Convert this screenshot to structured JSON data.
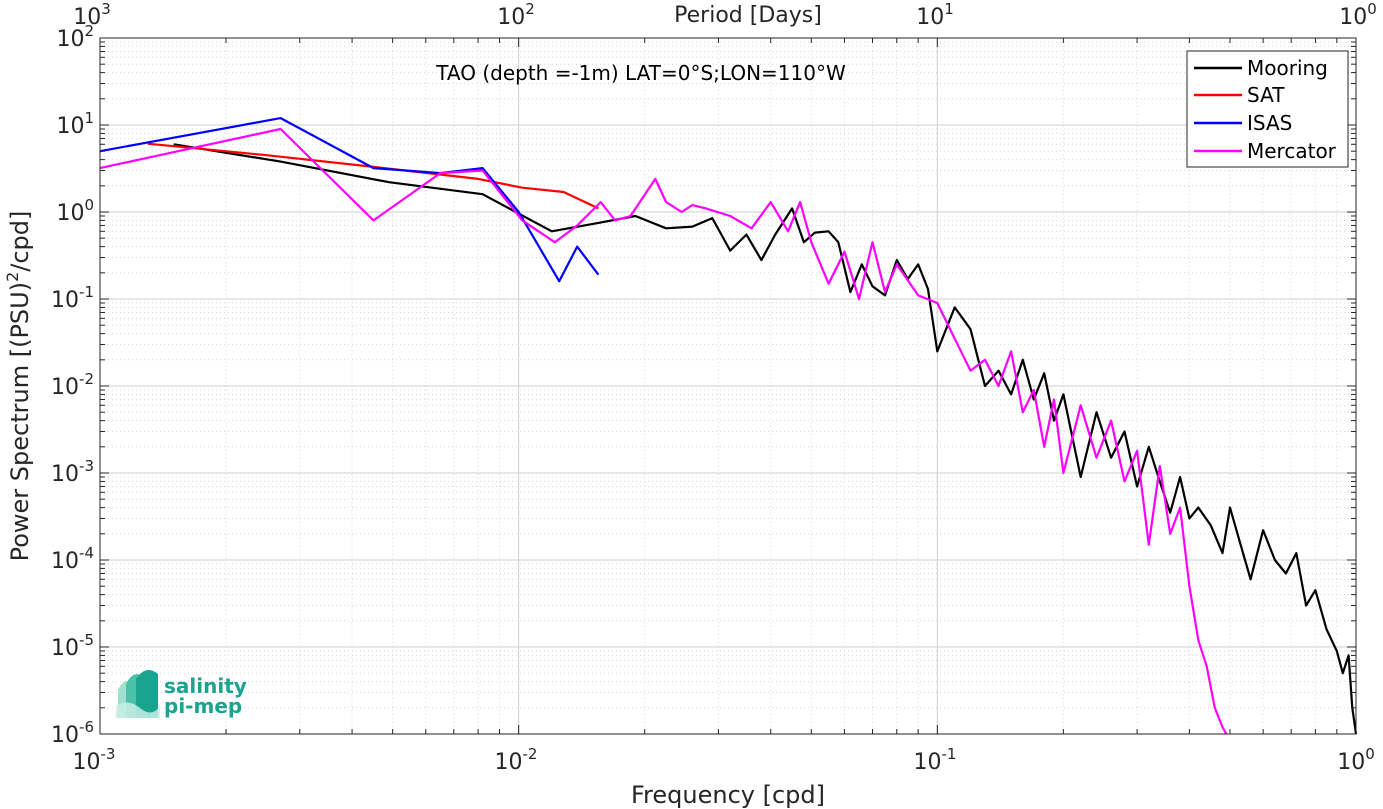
{
  "chart_data": {
    "type": "line",
    "title": "TAO (depth =-1m) LAT=0°S;LON=110°W",
    "xlabel": "Frequency [cpd]",
    "top_xlabel": "Period [Days]",
    "ylabel_main": "Power Spectrum [(PSU)",
    "ylabel_exp": "2",
    "ylabel_tail": "/cpd]",
    "x_scale": "log",
    "y_scale": "log",
    "xlim": [
      0.001,
      1
    ],
    "ylim": [
      1e-06,
      100
    ],
    "grid": true,
    "legend_position": "top-right",
    "x_ticks": [
      {
        "base": "10",
        "exp": "-3"
      },
      {
        "base": "10",
        "exp": "-2"
      },
      {
        "base": "10",
        "exp": "-1"
      },
      {
        "base": "10",
        "exp": "0"
      }
    ],
    "top_ticks": [
      {
        "base": "10",
        "exp": "3"
      },
      {
        "base": "10",
        "exp": "2"
      },
      {
        "base": "10",
        "exp": "1"
      },
      {
        "base": "10",
        "exp": "0"
      }
    ],
    "y_ticks": [
      {
        "base": "10",
        "exp": "2"
      },
      {
        "base": "10",
        "exp": "1"
      },
      {
        "base": "10",
        "exp": "0"
      },
      {
        "base": "10",
        "exp": "-1"
      },
      {
        "base": "10",
        "exp": "-2"
      },
      {
        "base": "10",
        "exp": "-3"
      },
      {
        "base": "10",
        "exp": "-4"
      },
      {
        "base": "10",
        "exp": "-5"
      },
      {
        "base": "10",
        "exp": "-6"
      }
    ],
    "series": [
      {
        "name": "Mooring",
        "color": "#000000",
        "x": [
          0.0015,
          0.0027,
          0.0049,
          0.0082,
          0.012,
          0.0155,
          0.019,
          0.0225,
          0.026,
          0.029,
          0.032,
          0.035,
          0.038,
          0.041,
          0.045,
          0.048,
          0.051,
          0.055,
          0.058,
          0.062,
          0.066,
          0.07,
          0.075,
          0.08,
          0.085,
          0.09,
          0.095,
          0.1,
          0.11,
          0.12,
          0.13,
          0.14,
          0.15,
          0.16,
          0.17,
          0.18,
          0.19,
          0.2,
          0.22,
          0.24,
          0.26,
          0.28,
          0.3,
          0.32,
          0.34,
          0.36,
          0.38,
          0.4,
          0.42,
          0.45,
          0.48,
          0.5,
          0.53,
          0.56,
          0.6,
          0.64,
          0.68,
          0.72,
          0.76,
          0.8,
          0.85,
          0.9,
          0.93,
          0.96,
          0.98,
          1.0
        ],
        "y": [
          6.0,
          3.8,
          2.2,
          1.6,
          0.6,
          0.75,
          0.9,
          0.65,
          0.68,
          0.85,
          0.36,
          0.55,
          0.28,
          0.55,
          1.1,
          0.45,
          0.58,
          0.6,
          0.45,
          0.12,
          0.25,
          0.14,
          0.11,
          0.28,
          0.17,
          0.25,
          0.13,
          0.025,
          0.08,
          0.045,
          0.01,
          0.015,
          0.008,
          0.02,
          0.007,
          0.014,
          0.004,
          0.008,
          0.0009,
          0.005,
          0.0015,
          0.003,
          0.0007,
          0.002,
          0.0008,
          0.00035,
          0.0009,
          0.0003,
          0.0004,
          0.00025,
          0.00012,
          0.0004,
          0.00015,
          6e-05,
          0.00022,
          0.0001,
          7e-05,
          0.00012,
          3e-05,
          4.5e-05,
          1.6e-05,
          9e-06,
          5e-06,
          8e-06,
          2e-06,
          1e-06
        ]
      },
      {
        "name": "SAT",
        "color": "#ff0000",
        "x": [
          0.0013,
          0.0025,
          0.0045,
          0.008,
          0.0102,
          0.0128,
          0.0155
        ],
        "y": [
          6.1,
          4.5,
          3.3,
          2.4,
          1.9,
          1.7,
          1.1
        ]
      },
      {
        "name": "ISAS",
        "color": "#0000ff",
        "x": [
          0.001,
          0.0027,
          0.0045,
          0.0065,
          0.0082,
          0.01,
          0.0125,
          0.0138,
          0.0155
        ],
        "y": [
          5.0,
          12.0,
          3.2,
          2.8,
          3.2,
          1.0,
          0.16,
          0.4,
          0.19
        ]
      },
      {
        "name": "Mercator",
        "color": "#ff00ff",
        "x": [
          0.001,
          0.0027,
          0.0045,
          0.0065,
          0.0082,
          0.0102,
          0.0122,
          0.0138,
          0.0157,
          0.017,
          0.0185,
          0.0212,
          0.0225,
          0.0245,
          0.026,
          0.028,
          0.032,
          0.036,
          0.04,
          0.044,
          0.047,
          0.05,
          0.055,
          0.06,
          0.065,
          0.07,
          0.075,
          0.08,
          0.09,
          0.1,
          0.11,
          0.12,
          0.13,
          0.14,
          0.15,
          0.16,
          0.17,
          0.18,
          0.19,
          0.2,
          0.22,
          0.24,
          0.26,
          0.28,
          0.3,
          0.32,
          0.34,
          0.36,
          0.38,
          0.4,
          0.42,
          0.44,
          0.46,
          0.48,
          0.49
        ],
        "y": [
          3.2,
          9.0,
          0.8,
          2.8,
          3.0,
          0.8,
          0.45,
          0.7,
          1.3,
          0.8,
          0.9,
          2.4,
          1.3,
          1.0,
          1.2,
          1.1,
          0.9,
          0.65,
          1.3,
          0.6,
          1.3,
          0.45,
          0.15,
          0.35,
          0.1,
          0.45,
          0.12,
          0.25,
          0.11,
          0.09,
          0.035,
          0.015,
          0.02,
          0.01,
          0.025,
          0.005,
          0.009,
          0.002,
          0.007,
          0.001,
          0.006,
          0.0015,
          0.004,
          0.0008,
          0.0018,
          0.00015,
          0.0012,
          0.0002,
          0.0004,
          5e-05,
          1.2e-05,
          6e-06,
          2e-06,
          1.2e-06,
          1e-06
        ]
      }
    ]
  },
  "logo": {
    "line1": "salinity",
    "line2": "pi-mep"
  }
}
